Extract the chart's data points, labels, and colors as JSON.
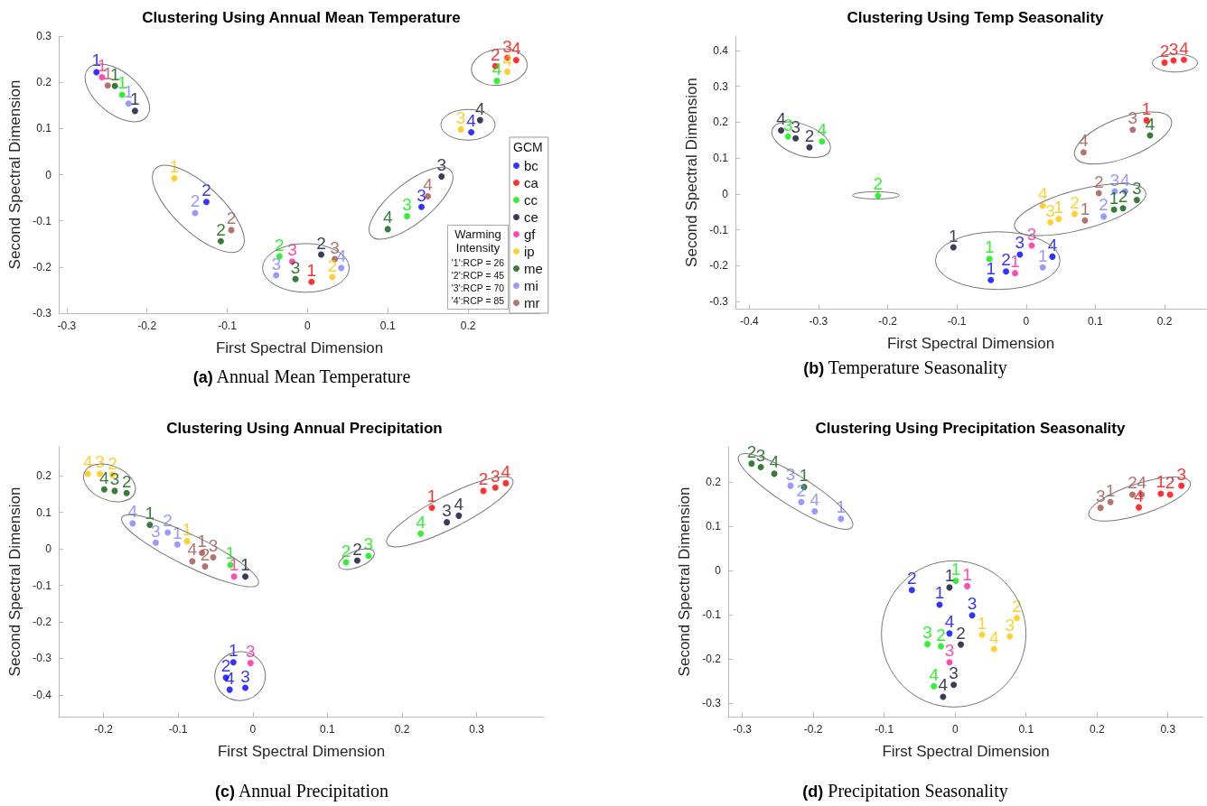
{
  "chart_data": [
    {
      "type": "scatter",
      "title": "Clustering Using Annual Mean Temperature",
      "xlabel": "First Spectral Dimension",
      "ylabel": "Second Spectral Dimension",
      "xlim": [
        -0.31,
        0.29
      ],
      "ylim": [
        -0.3,
        0.3
      ],
      "xticks": [
        -0.3,
        -0.2,
        -0.1,
        0,
        0.1,
        0.2
      ],
      "yticks": [
        -0.3,
        -0.2,
        -0.1,
        0,
        0.1,
        0.2,
        0.3
      ],
      "grid": false,
      "legend": "right",
      "legend_title": "GCM",
      "marker": "circle",
      "series": [
        {
          "name": "bc",
          "color": "#0000ff",
          "x": [
            -0.263,
            -0.126,
            0.142,
            0.204
          ],
          "values": [
            0.222,
            -0.059,
            -0.07,
            0.092
          ]
        },
        {
          "name": "ca",
          "color": "#ff0000",
          "x": [
            0.005,
            0.234,
            0.249,
            0.26
          ],
          "values": [
            -0.232,
            0.235,
            0.253,
            0.248
          ]
        },
        {
          "name": "cc",
          "color": "#00ee00",
          "x": [
            -0.231,
            -0.035,
            0.124,
            0.236
          ],
          "values": [
            0.173,
            -0.177,
            -0.09,
            0.203
          ]
        },
        {
          "name": "ce",
          "color": "#0a0a33",
          "x": [
            -0.215,
            0.017,
            0.167,
            0.215
          ],
          "values": [
            0.138,
            -0.173,
            -0.004,
            0.118
          ]
        },
        {
          "name": "gf",
          "color": "#ff1fa0",
          "x": [
            -0.256,
            -0.019
          ],
          "values": [
            0.211,
            -0.188
          ]
        },
        {
          "name": "ip",
          "color": "#ffc400",
          "x": [
            -0.166,
            0.031,
            0.191,
            0.249
          ],
          "values": [
            -0.008,
            -0.222,
            0.098,
            0.223
          ]
        },
        {
          "name": "me",
          "color": "#085a08",
          "x": [
            -0.24,
            -0.108,
            -0.015,
            0.1
          ],
          "values": [
            0.192,
            -0.144,
            -0.226,
            -0.118
          ]
        },
        {
          "name": "mi",
          "color": "#8080ff",
          "x": [
            -0.223,
            -0.14,
            -0.039,
            0.042
          ],
          "values": [
            0.154,
            -0.083,
            -0.218,
            -0.202
          ]
        },
        {
          "name": "mr",
          "color": "#a0504a",
          "x": [
            -0.249,
            -0.095,
            0.034,
            0.15
          ],
          "values": [
            0.193,
            -0.12,
            -0.183,
            -0.047
          ]
        }
      ],
      "annotations": [
        {
          "text": "1",
          "x": -0.263,
          "y": 0.222
        },
        {
          "text": "2",
          "x": -0.126,
          "y": -0.059
        },
        {
          "text": "3",
          "x": 0.142,
          "y": -0.07
        },
        {
          "text": "4",
          "x": 0.204,
          "y": 0.092
        },
        {
          "text": "1",
          "x": 0.005,
          "y": -0.232
        },
        {
          "text": "2",
          "x": 0.234,
          "y": 0.235
        },
        {
          "text": "3",
          "x": 0.249,
          "y": 0.253
        },
        {
          "text": "4",
          "x": 0.26,
          "y": 0.248
        },
        {
          "text": "1",
          "x": -0.231,
          "y": 0.173
        },
        {
          "text": "2",
          "x": -0.035,
          "y": -0.177
        },
        {
          "text": "3",
          "x": 0.124,
          "y": -0.09
        },
        {
          "text": "4",
          "x": 0.236,
          "y": 0.203
        },
        {
          "text": "1",
          "x": -0.215,
          "y": 0.138
        },
        {
          "text": "2",
          "x": 0.017,
          "y": -0.173
        },
        {
          "text": "3",
          "x": 0.167,
          "y": -0.004
        },
        {
          "text": "4",
          "x": 0.215,
          "y": 0.118
        },
        {
          "text": "1",
          "x": -0.256,
          "y": 0.211
        },
        {
          "text": "3",
          "x": -0.019,
          "y": -0.188
        },
        {
          "text": "1",
          "x": -0.166,
          "y": -0.008
        },
        {
          "text": "2",
          "x": 0.031,
          "y": -0.222
        },
        {
          "text": "3",
          "x": 0.191,
          "y": 0.098
        },
        {
          "text": "4",
          "x": 0.249,
          "y": 0.223
        },
        {
          "text": "1",
          "x": -0.24,
          "y": 0.192
        },
        {
          "text": "2",
          "x": -0.108,
          "y": -0.144
        },
        {
          "text": "3",
          "x": -0.015,
          "y": -0.226
        },
        {
          "text": "4",
          "x": 0.1,
          "y": -0.118
        },
        {
          "text": "1",
          "x": -0.223,
          "y": 0.154
        },
        {
          "text": "2",
          "x": -0.14,
          "y": -0.083
        },
        {
          "text": "3",
          "x": -0.039,
          "y": -0.218
        },
        {
          "text": "4",
          "x": 0.042,
          "y": -0.202
        },
        {
          "text": "1",
          "x": -0.249,
          "y": 0.193
        },
        {
          "text": "2",
          "x": -0.095,
          "y": -0.12
        },
        {
          "text": "3",
          "x": 0.034,
          "y": -0.183
        },
        {
          "text": "4",
          "x": 0.15,
          "y": -0.047
        },
        "Warming Intensity",
        "'1':RCP = 26",
        "'2':RCP = 45",
        "'3':RCP = 70",
        "'4':RCP = 85",
        "(a)  Annual Mean Temperature"
      ]
    },
    {
      "type": "scatter",
      "title": "Clustering Using Temp Seasonality",
      "xlabel": "First Spectral Dimension",
      "ylabel": "Second Spectral Dimension",
      "xlim": [
        -0.42,
        0.26
      ],
      "ylim": [
        -0.32,
        0.44
      ],
      "xticks": [
        -0.4,
        -0.3,
        -0.2,
        -0.1,
        0,
        0.1,
        0.2
      ],
      "yticks": [
        -0.3,
        -0.2,
        -0.1,
        0,
        0.1,
        0.2,
        0.3,
        0.4
      ],
      "grid": false,
      "marker": "circle",
      "series": [
        {
          "color": "#0000ff",
          "x": [
            -0.051,
            -0.029,
            -0.009,
            0.038
          ],
          "values": [
            -0.24,
            -0.216,
            -0.169,
            -0.175
          ]
        },
        {
          "color": "#ff0000",
          "x": [
            0.174,
            0.2,
            0.213,
            0.228
          ],
          "values": [
            0.205,
            0.366,
            0.372,
            0.374
          ]
        },
        {
          "color": "#00ee00",
          "x": [
            -0.053,
            -0.214,
            -0.344,
            -0.295
          ],
          "values": [
            -0.181,
            -0.005,
            0.16,
            0.146
          ]
        },
        {
          "color": "#0a0a33",
          "x": [
            -0.105,
            -0.313,
            -0.333,
            -0.354
          ],
          "values": [
            -0.149,
            0.13,
            0.155,
            0.177
          ]
        },
        {
          "color": "#ff1fa0",
          "x": [
            -0.016,
            0.008
          ],
          "values": [
            -0.221,
            -0.144
          ]
        },
        {
          "color": "#ffc400",
          "x": [
            0.047,
            0.07,
            0.035,
            0.024
          ],
          "values": [
            -0.07,
            -0.056,
            -0.079,
            -0.033
          ]
        },
        {
          "color": "#085a08",
          "x": [
            0.127,
            0.14,
            0.16,
            0.179
          ],
          "values": [
            -0.044,
            -0.04,
            -0.017,
            0.163
          ]
        },
        {
          "color": "#8080ff",
          "x": [
            0.024,
            0.112,
            0.128,
            0.143
          ],
          "values": [
            -0.205,
            -0.063,
            0.007,
            0.007
          ]
        },
        {
          "color": "#a0504a",
          "x": [
            0.085,
            0.105,
            0.154,
            0.083
          ],
          "values": [
            -0.074,
            0.002,
            0.179,
            0.116
          ]
        }
      ],
      "annotations": [
        {
          "text": "1",
          "x": -0.051,
          "y": -0.24
        },
        {
          "text": "2",
          "x": -0.029,
          "y": -0.216
        },
        {
          "text": "3",
          "x": -0.009,
          "y": -0.169
        },
        {
          "text": "4",
          "x": 0.038,
          "y": -0.175
        },
        {
          "text": "1",
          "x": 0.174,
          "y": 0.205
        },
        {
          "text": "2",
          "x": 0.2,
          "y": 0.366
        },
        {
          "text": "3",
          "x": 0.213,
          "y": 0.372
        },
        {
          "text": "4",
          "x": 0.228,
          "y": 0.374
        },
        {
          "text": "1",
          "x": -0.053,
          "y": -0.181
        },
        {
          "text": "2",
          "x": -0.214,
          "y": -0.005
        },
        {
          "text": "3",
          "x": -0.344,
          "y": 0.16
        },
        {
          "text": "4",
          "x": -0.295,
          "y": 0.146
        },
        {
          "text": "1",
          "x": -0.105,
          "y": -0.149
        },
        {
          "text": "2",
          "x": -0.313,
          "y": 0.13
        },
        {
          "text": "3",
          "x": -0.333,
          "y": 0.155
        },
        {
          "text": "4",
          "x": -0.354,
          "y": 0.177
        },
        {
          "text": "1",
          "x": -0.016,
          "y": -0.221
        },
        {
          "text": "3",
          "x": 0.008,
          "y": -0.144
        },
        {
          "text": "1",
          "x": 0.047,
          "y": -0.07
        },
        {
          "text": "2",
          "x": 0.07,
          "y": -0.056
        },
        {
          "text": "3",
          "x": 0.035,
          "y": -0.079
        },
        {
          "text": "4",
          "x": 0.024,
          "y": -0.033
        },
        {
          "text": "1",
          "x": 0.127,
          "y": -0.044
        },
        {
          "text": "2",
          "x": 0.14,
          "y": -0.04
        },
        {
          "text": "3",
          "x": 0.16,
          "y": -0.017
        },
        {
          "text": "4",
          "x": 0.179,
          "y": 0.163
        },
        {
          "text": "1",
          "x": 0.024,
          "y": -0.205
        },
        {
          "text": "2",
          "x": 0.112,
          "y": -0.063
        },
        {
          "text": "3",
          "x": 0.128,
          "y": 0.007
        },
        {
          "text": "4",
          "x": 0.143,
          "y": 0.007
        },
        {
          "text": "1",
          "x": 0.085,
          "y": -0.074
        },
        {
          "text": "2",
          "x": 0.105,
          "y": 0.002
        },
        {
          "text": "3",
          "x": 0.154,
          "y": 0.179
        },
        {
          "text": "4",
          "x": 0.083,
          "y": 0.116
        },
        "(b)  Temperature Seasonality"
      ]
    },
    {
      "type": "scatter",
      "title": "Clustering Using Annual Precipitation",
      "xlabel": "First Spectral Dimension",
      "ylabel": "Second Spectral Dimension",
      "xlim": [
        -0.26,
        0.39
      ],
      "ylim": [
        -0.46,
        0.28
      ],
      "xticks": [
        -0.2,
        -0.1,
        0,
        0.1,
        0.2,
        0.3
      ],
      "yticks": [
        -0.4,
        -0.3,
        -0.2,
        -0.1,
        0,
        0.1,
        0.2
      ],
      "grid": false,
      "marker": "circle",
      "series": [
        {
          "color": "#0000ff",
          "x": [
            -0.026,
            -0.036,
            -0.01,
            -0.031
          ],
          "values": [
            -0.311,
            -0.353,
            -0.381,
            -0.386
          ]
        },
        {
          "color": "#ff0000",
          "x": [
            0.24,
            0.309,
            0.325,
            0.339
          ],
          "values": [
            0.113,
            0.159,
            0.168,
            0.18
          ]
        },
        {
          "color": "#00ee00",
          "x": [
            -0.03,
            0.125,
            0.155,
            0.225
          ],
          "values": [
            -0.044,
            -0.037,
            -0.019,
            0.042
          ]
        },
        {
          "color": "#0a0a33",
          "x": [
            -0.01,
            0.14,
            0.26,
            0.276
          ],
          "values": [
            -0.076,
            -0.032,
            0.073,
            0.091
          ]
        },
        {
          "color": "#ff1fa0",
          "x": [
            -0.025,
            -0.003
          ],
          "values": [
            -0.076,
            -0.313
          ]
        },
        {
          "color": "#ffc400",
          "x": [
            -0.088,
            -0.188,
            -0.205,
            -0.221
          ],
          "values": [
            0.021,
            0.203,
            0.206,
            0.206
          ]
        },
        {
          "color": "#085a08",
          "x": [
            -0.138,
            -0.169,
            -0.185,
            -0.199
          ],
          "values": [
            0.066,
            0.153,
            0.159,
            0.163
          ]
        },
        {
          "color": "#8080ff",
          "x": [
            -0.101,
            -0.114,
            -0.13,
            -0.161
          ],
          "values": [
            0.012,
            0.045,
            0.017,
            0.07
          ]
        },
        {
          "color": "#a0504a",
          "x": [
            -0.068,
            -0.064,
            -0.053,
            -0.081
          ],
          "values": [
            -0.011,
            -0.048,
            -0.023,
            -0.034
          ]
        }
      ],
      "annotations": [
        {
          "text": "1",
          "x": -0.026,
          "y": -0.311
        },
        {
          "text": "2",
          "x": -0.036,
          "y": -0.353
        },
        {
          "text": "3",
          "x": -0.01,
          "y": -0.381
        },
        {
          "text": "4",
          "x": -0.031,
          "y": -0.386
        },
        {
          "text": "1",
          "x": 0.24,
          "y": 0.113
        },
        {
          "text": "2",
          "x": 0.309,
          "y": 0.159
        },
        {
          "text": "3",
          "x": 0.325,
          "y": 0.168
        },
        {
          "text": "4",
          "x": 0.339,
          "y": 0.18
        },
        {
          "text": "1",
          "x": -0.03,
          "y": -0.044
        },
        {
          "text": "2",
          "x": 0.125,
          "y": -0.037
        },
        {
          "text": "3",
          "x": 0.155,
          "y": -0.019
        },
        {
          "text": "4",
          "x": 0.225,
          "y": 0.042
        },
        {
          "text": "1",
          "x": -0.01,
          "y": -0.076
        },
        {
          "text": "2",
          "x": 0.14,
          "y": -0.032
        },
        {
          "text": "3",
          "x": 0.26,
          "y": 0.073
        },
        {
          "text": "4",
          "x": 0.276,
          "y": 0.091
        },
        {
          "text": "1",
          "x": -0.025,
          "y": -0.076
        },
        {
          "text": "3",
          "x": -0.003,
          "y": -0.313
        },
        {
          "text": "1",
          "x": -0.088,
          "y": 0.021
        },
        {
          "text": "2",
          "x": -0.188,
          "y": 0.203
        },
        {
          "text": "3",
          "x": -0.205,
          "y": 0.206
        },
        {
          "text": "4",
          "x": -0.221,
          "y": 0.206
        },
        {
          "text": "1",
          "x": -0.138,
          "y": 0.066
        },
        {
          "text": "2",
          "x": -0.169,
          "y": 0.153
        },
        {
          "text": "3",
          "x": -0.185,
          "y": 0.159
        },
        {
          "text": "4",
          "x": -0.199,
          "y": 0.163
        },
        {
          "text": "1",
          "x": -0.101,
          "y": 0.012
        },
        {
          "text": "2",
          "x": -0.114,
          "y": 0.045
        },
        {
          "text": "3",
          "x": -0.13,
          "y": 0.017
        },
        {
          "text": "4",
          "x": -0.161,
          "y": 0.07
        },
        {
          "text": "1",
          "x": -0.068,
          "y": -0.011
        },
        {
          "text": "2",
          "x": -0.064,
          "y": -0.048
        },
        {
          "text": "3",
          "x": -0.053,
          "y": -0.023
        },
        {
          "text": "4",
          "x": -0.081,
          "y": -0.034
        },
        "(c)  Annual Precipitation"
      ]
    },
    {
      "type": "scatter",
      "title": "Clustering Using Precipitation Seasonality",
      "xlabel": "First Spectral Dimension",
      "ylabel": "Second Spectral Dimension",
      "xlim": [
        -0.32,
        0.35
      ],
      "ylim": [
        -0.33,
        0.28
      ],
      "xticks": [
        -0.3,
        -0.2,
        -0.1,
        0,
        0.1,
        0.2,
        0.3
      ],
      "yticks": [
        -0.3,
        -0.2,
        -0.1,
        0,
        0.1,
        0.2
      ],
      "grid": false,
      "marker": "circle",
      "series": [
        {
          "color": "#0000ff",
          "x": [
            -0.022,
            -0.061,
            0.024,
            -0.008
          ],
          "values": [
            -0.077,
            -0.044,
            -0.101,
            -0.142
          ]
        },
        {
          "color": "#ff0000",
          "x": [
            0.29,
            0.303,
            0.319,
            0.259
          ],
          "values": [
            0.174,
            0.172,
            0.192,
            0.143
          ]
        },
        {
          "color": "#00ee00",
          "x": [
            0.001,
            -0.02,
            -0.039,
            -0.03
          ],
          "values": [
            -0.023,
            -0.171,
            -0.166,
            -0.261
          ]
        },
        {
          "color": "#0a0a33",
          "x": [
            -0.008,
            0.008,
            -0.002,
            -0.017
          ],
          "values": [
            -0.038,
            -0.167,
            -0.258,
            -0.285
          ]
        },
        {
          "color": "#ff1fa0",
          "x": [
            0.017,
            -0.008
          ],
          "values": [
            -0.035,
            -0.207
          ]
        },
        {
          "color": "#ffc400",
          "x": [
            0.038,
            0.087,
            0.077,
            0.055
          ],
          "values": [
            -0.145,
            -0.107,
            -0.149,
            -0.177
          ]
        },
        {
          "color": "#085a08",
          "x": [
            -0.213,
            -0.287,
            -0.274,
            -0.255
          ],
          "values": [
            0.189,
            0.242,
            0.234,
            0.219
          ]
        },
        {
          "color": "#8080ff",
          "x": [
            -0.161,
            -0.217,
            -0.232,
            -0.198
          ],
          "values": [
            0.117,
            0.155,
            0.192,
            0.134
          ]
        },
        {
          "color": "#a0504a",
          "x": [
            0.219,
            0.25,
            0.205,
            0.263
          ],
          "values": [
            0.155,
            0.172,
            0.142,
            0.172
          ]
        }
      ],
      "annotations": [
        {
          "text": "1",
          "x": -0.022,
          "y": -0.077
        },
        {
          "text": "2",
          "x": -0.061,
          "y": -0.044
        },
        {
          "text": "3",
          "x": 0.024,
          "y": -0.101
        },
        {
          "text": "4",
          "x": -0.008,
          "y": -0.142
        },
        {
          "text": "1",
          "x": 0.29,
          "y": 0.174
        },
        {
          "text": "2",
          "x": 0.303,
          "y": 0.172
        },
        {
          "text": "3",
          "x": 0.319,
          "y": 0.192
        },
        {
          "text": "4",
          "x": 0.259,
          "y": 0.143
        },
        {
          "text": "1",
          "x": 0.001,
          "y": -0.023
        },
        {
          "text": "2",
          "x": -0.02,
          "y": -0.171
        },
        {
          "text": "3",
          "x": -0.039,
          "y": -0.166
        },
        {
          "text": "4",
          "x": -0.03,
          "y": -0.261
        },
        {
          "text": "1",
          "x": -0.008,
          "y": -0.038
        },
        {
          "text": "2",
          "x": 0.008,
          "y": -0.167
        },
        {
          "text": "3",
          "x": -0.002,
          "y": -0.258
        },
        {
          "text": "4",
          "x": -0.017,
          "y": -0.285
        },
        {
          "text": "1",
          "x": 0.017,
          "y": -0.035
        },
        {
          "text": "3",
          "x": -0.008,
          "y": -0.207
        },
        {
          "text": "1",
          "x": 0.038,
          "y": -0.145
        },
        {
          "text": "2",
          "x": 0.087,
          "y": -0.107
        },
        {
          "text": "3",
          "x": 0.077,
          "y": -0.149
        },
        {
          "text": "4",
          "x": 0.055,
          "y": -0.177
        },
        {
          "text": "1",
          "x": -0.213,
          "y": 0.189
        },
        {
          "text": "2",
          "x": -0.287,
          "y": 0.242
        },
        {
          "text": "3",
          "x": -0.274,
          "y": 0.234
        },
        {
          "text": "4",
          "x": -0.255,
          "y": 0.219
        },
        {
          "text": "1",
          "x": -0.161,
          "y": 0.117
        },
        {
          "text": "2",
          "x": -0.217,
          "y": 0.155
        },
        {
          "text": "3",
          "x": -0.232,
          "y": 0.192
        },
        {
          "text": "4",
          "x": -0.198,
          "y": 0.134
        },
        {
          "text": "1",
          "x": 0.219,
          "y": 0.155
        },
        {
          "text": "2",
          "x": 0.25,
          "y": 0.172
        },
        {
          "text": "3",
          "x": 0.205,
          "y": 0.142
        },
        {
          "text": "4",
          "x": 0.263,
          "y": 0.172
        },
        "(d)  Precipitation Seasonality"
      ]
    }
  ]
}
